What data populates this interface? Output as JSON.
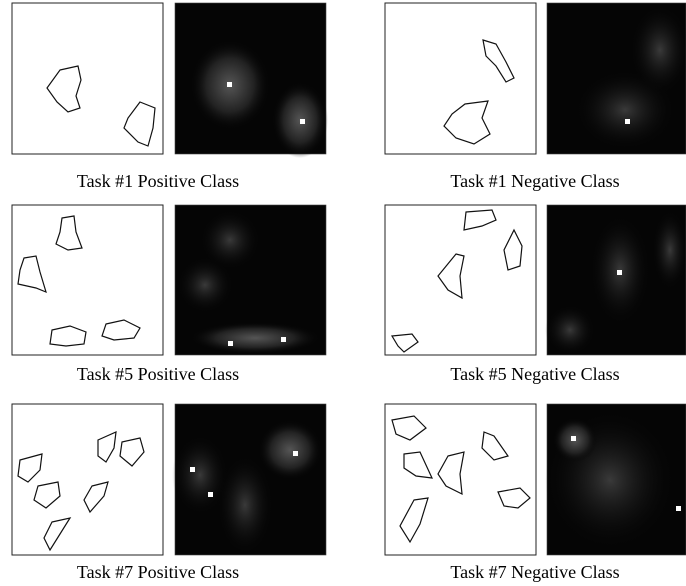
{
  "panels": [
    {
      "caption": "Task #1 Positive Class"
    },
    {
      "caption": "Task #1 Negative Class"
    },
    {
      "caption": "Task #5 Positive Class"
    },
    {
      "caption": "Task #5 Negative Class"
    },
    {
      "caption": "Task #7 Positive Class"
    },
    {
      "caption": "Task #7 Negative Class"
    }
  ]
}
